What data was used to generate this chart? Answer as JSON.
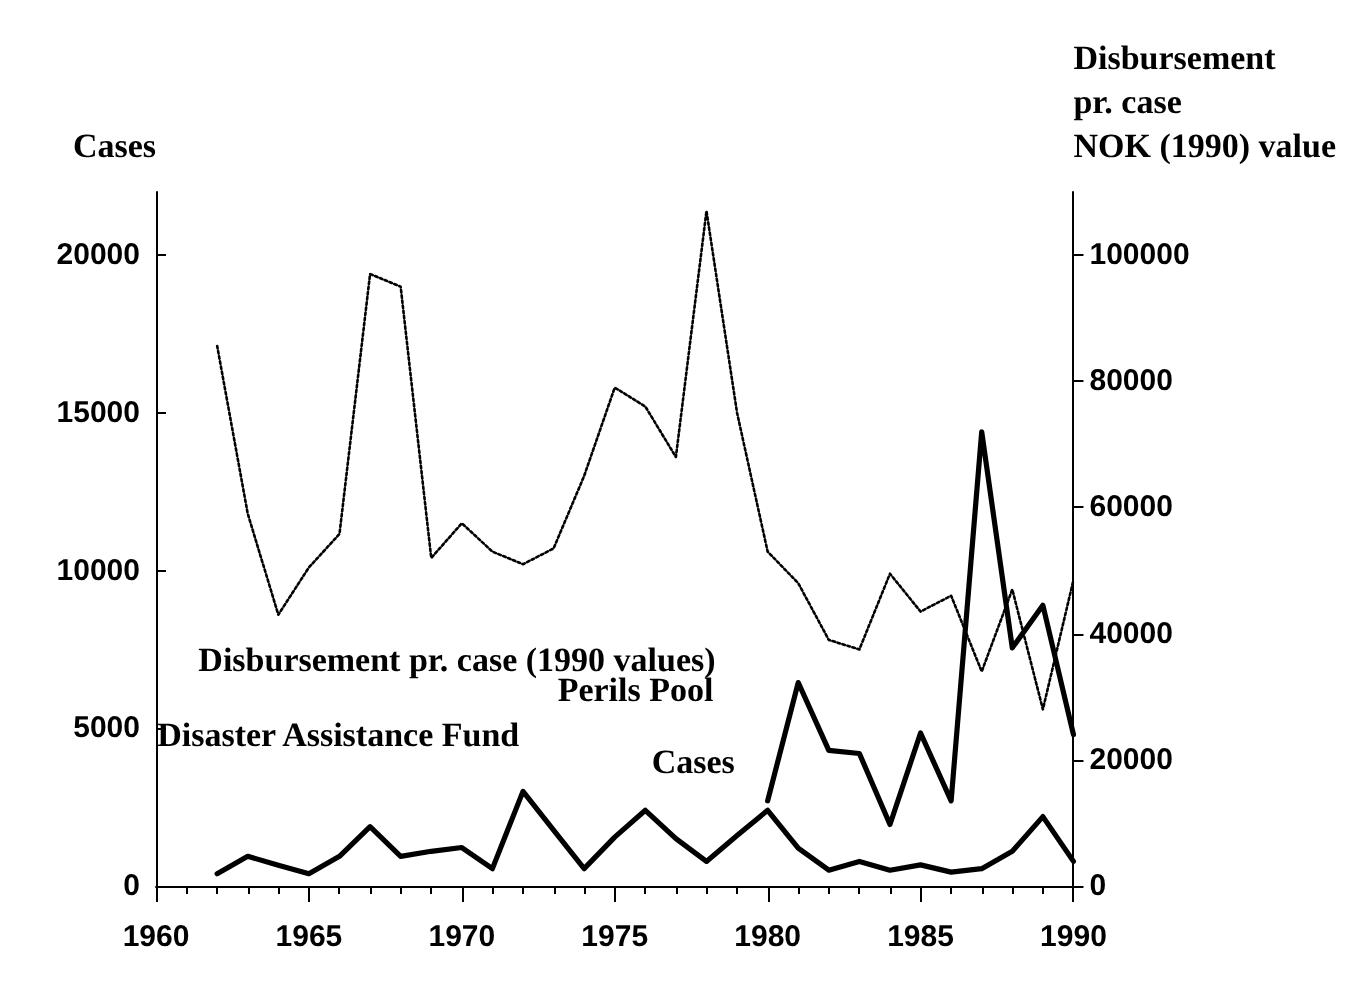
{
  "chart_data": {
    "type": "line",
    "x": [
      1962,
      1963,
      1964,
      1965,
      1966,
      1967,
      1968,
      1969,
      1970,
      1971,
      1972,
      1973,
      1974,
      1975,
      1976,
      1977,
      1978,
      1979,
      1980,
      1981,
      1982,
      1983,
      1984,
      1985,
      1986,
      1987,
      1988,
      1989,
      1990
    ],
    "series": [
      {
        "name": "Disbursement pr. case (1990 values)",
        "axis": "y2",
        "color": "#000000",
        "line_style": "dotted",
        "values": [
          85600,
          59000,
          43000,
          50500,
          55800,
          97000,
          95000,
          52000,
          57500,
          53000,
          51000,
          53500,
          65000,
          79000,
          76000,
          68000,
          107000,
          75000,
          53000,
          48000,
          39000,
          37500,
          49500,
          43500,
          46000,
          34000,
          47000,
          28000,
          48500
        ]
      },
      {
        "name": "Disaster Assistance Fund",
        "color": "#000000",
        "line_style": "solid",
        "values": [
          390,
          940,
          660,
          390,
          940,
          1880,
          940,
          1100,
          1220,
          550,
          3000,
          1770,
          550,
          1550,
          2400,
          1500,
          780,
          1600,
          2400,
          1200,
          500,
          780,
          500,
          670,
          440,
          550,
          1100,
          2200,
          780
        ]
      },
      {
        "name": "Perils Pool",
        "color": "#000000",
        "line_style": "solid",
        "values": [
          null,
          null,
          null,
          null,
          null,
          null,
          null,
          null,
          null,
          null,
          null,
          null,
          null,
          null,
          null,
          null,
          null,
          null,
          2700,
          6450,
          4300,
          4200,
          1950,
          4850,
          2700,
          14400,
          7550,
          8900,
          4800
        ]
      }
    ],
    "annotations": [
      "Cases"
    ],
    "ylabel": "Cases",
    "y2label": "Disbursement\npr. case\nNOK (1990) value",
    "xlim": [
      1960,
      1990
    ],
    "xticks": [
      1960,
      1965,
      1970,
      1975,
      1980,
      1985,
      1990
    ],
    "ylim": [
      0,
      22000
    ],
    "yticks": [
      0,
      5000,
      10000,
      15000,
      20000
    ],
    "y2lim": [
      0,
      110000
    ],
    "y2ticks": [
      0,
      20000,
      40000,
      60000,
      80000,
      100000
    ],
    "grid": false,
    "legend": false,
    "marker": "none"
  }
}
